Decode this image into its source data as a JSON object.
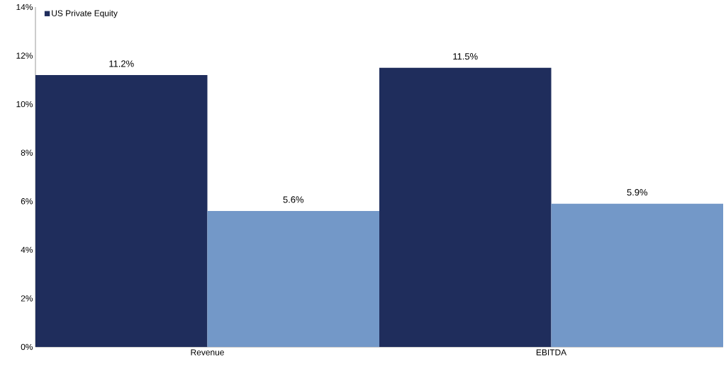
{
  "chart_data": {
    "type": "bar",
    "categories": [
      "Revenue",
      "EBITDA"
    ],
    "series": [
      {
        "name": "US Private Equity",
        "color": "#1f2d5c",
        "values": [
          11.2,
          11.5
        ],
        "value_labels": [
          "11.2%",
          "11.5%"
        ]
      },
      {
        "color": "#7398c8",
        "values": [
          5.6,
          5.9
        ],
        "value_labels": [
          "5.6%",
          "5.9%"
        ]
      }
    ],
    "ylim": [
      0,
      14
    ],
    "yticks": [
      {
        "value": 0,
        "label": "0%"
      },
      {
        "value": 2,
        "label": "2%"
      },
      {
        "value": 4,
        "label": "4%"
      },
      {
        "value": 6,
        "label": "6%"
      },
      {
        "value": 8,
        "label": "8%"
      },
      {
        "value": 10,
        "label": "10%"
      },
      {
        "value": 12,
        "label": "12%"
      },
      {
        "value": 14,
        "label": "14%"
      }
    ],
    "grid": false,
    "legend": "top left"
  }
}
